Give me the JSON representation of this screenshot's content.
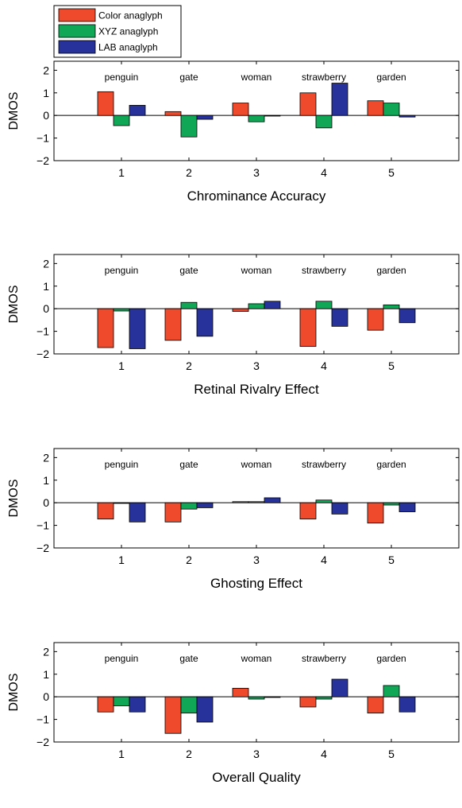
{
  "legend": [
    {
      "name": "Color anaglyph",
      "color": "#f04a2c"
    },
    {
      "name": "XYZ anaglyph",
      "color": "#10a857"
    },
    {
      "name": "LAB anaglyph",
      "color": "#27339a"
    }
  ],
  "chart_data": [
    {
      "type": "bar",
      "xlabel": "Chrominance Accuracy",
      "ylabel": "DMOS",
      "ylim": [
        -2,
        2.4
      ],
      "yticks": [
        -2,
        -1,
        0,
        1,
        2
      ],
      "categories": [
        "1",
        "2",
        "3",
        "4",
        "5"
      ],
      "category_names": [
        "penguin",
        "gate",
        "woman",
        "strawberry",
        "garden"
      ],
      "series": [
        {
          "name": "Color anaglyph",
          "values": [
            1.05,
            0.17,
            0.55,
            1.0,
            0.65
          ]
        },
        {
          "name": "XYZ anaglyph",
          "values": [
            -0.45,
            -0.95,
            -0.28,
            -0.55,
            0.55
          ]
        },
        {
          "name": "LAB anaglyph",
          "values": [
            0.45,
            -0.17,
            -0.02,
            1.43,
            -0.07
          ]
        }
      ]
    },
    {
      "type": "bar",
      "xlabel": "Retinal Rivalry Effect",
      "ylabel": "DMOS",
      "ylim": [
        -2,
        2.4
      ],
      "yticks": [
        -2,
        -1,
        0,
        1,
        2
      ],
      "categories": [
        "1",
        "2",
        "3",
        "4",
        "5"
      ],
      "category_names": [
        "penguin",
        "gate",
        "woman",
        "strawberry",
        "garden"
      ],
      "series": [
        {
          "name": "Color anaglyph",
          "values": [
            -1.72,
            -1.4,
            -0.12,
            -1.67,
            -0.95
          ]
        },
        {
          "name": "XYZ anaglyph",
          "values": [
            -0.1,
            0.28,
            0.22,
            0.33,
            0.17
          ]
        },
        {
          "name": "LAB anaglyph",
          "values": [
            -1.77,
            -1.22,
            0.33,
            -0.78,
            -0.62
          ]
        }
      ]
    },
    {
      "type": "bar",
      "xlabel": "Ghosting Effect",
      "ylabel": "DMOS",
      "ylim": [
        -2,
        2.4
      ],
      "yticks": [
        -2,
        -1,
        0,
        1,
        2
      ],
      "categories": [
        "1",
        "2",
        "3",
        "4",
        "5"
      ],
      "category_names": [
        "penguin",
        "gate",
        "woman",
        "strawberry",
        "garden"
      ],
      "series": [
        {
          "name": "Color anaglyph",
          "values": [
            -0.72,
            -0.85,
            0.05,
            -0.72,
            -0.9
          ]
        },
        {
          "name": "XYZ anaglyph",
          "values": [
            0.0,
            -0.28,
            0.05,
            0.12,
            -0.1
          ]
        },
        {
          "name": "LAB anaglyph",
          "values": [
            -0.85,
            -0.22,
            0.22,
            -0.5,
            -0.4
          ]
        }
      ]
    },
    {
      "type": "bar",
      "xlabel": "Overall Quality",
      "ylabel": "DMOS",
      "ylim": [
        -2,
        2.4
      ],
      "yticks": [
        -2,
        -1,
        0,
        1,
        2
      ],
      "categories": [
        "1",
        "2",
        "3",
        "4",
        "5"
      ],
      "category_names": [
        "penguin",
        "gate",
        "woman",
        "strawberry",
        "garden"
      ],
      "series": [
        {
          "name": "Color anaglyph",
          "values": [
            -0.67,
            -1.62,
            0.38,
            -0.45,
            -0.72
          ]
        },
        {
          "name": "XYZ anaglyph",
          "values": [
            -0.4,
            -0.72,
            -0.1,
            -0.1,
            0.5
          ]
        },
        {
          "name": "LAB anaglyph",
          "values": [
            -0.67,
            -1.12,
            -0.02,
            0.78,
            -0.67
          ]
        }
      ]
    }
  ]
}
